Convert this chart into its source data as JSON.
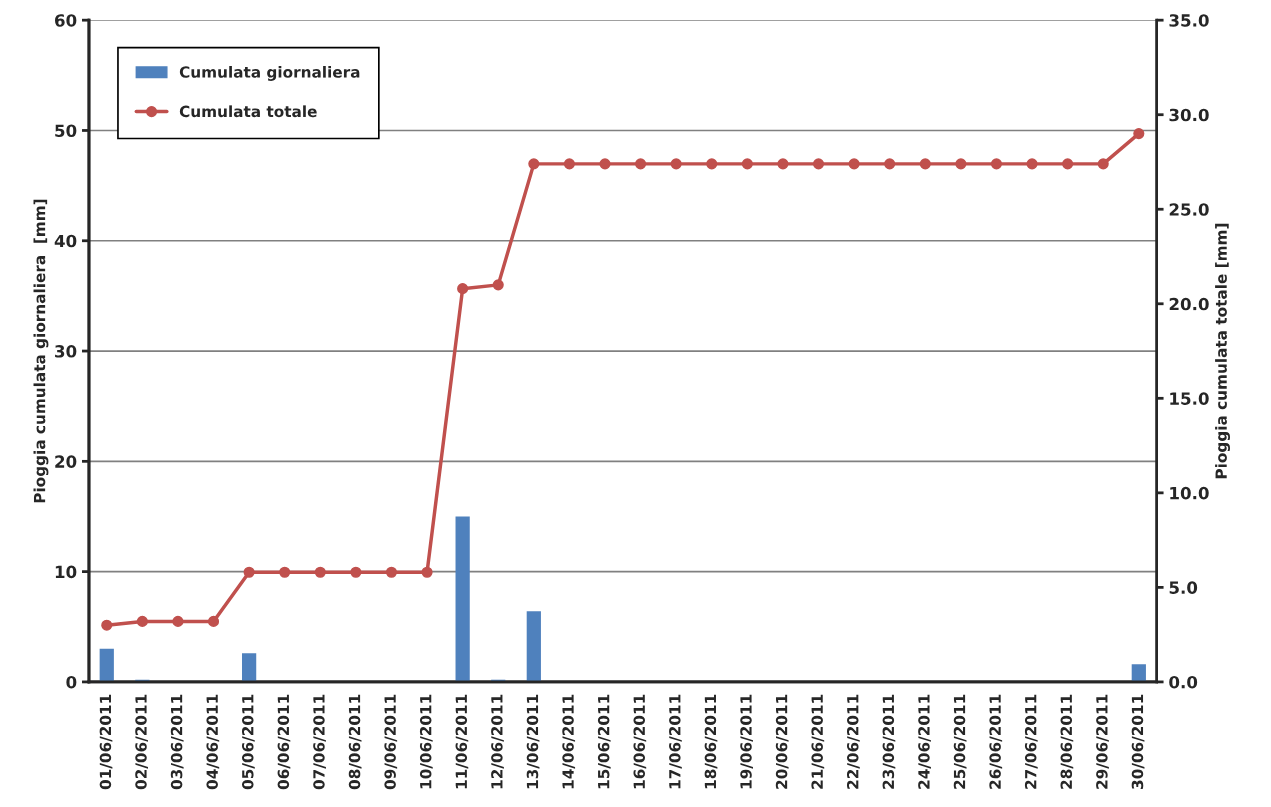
{
  "chart_data": {
    "type": "bar",
    "categories": [
      "01/06/2011",
      "02/06/2011",
      "03/06/2011",
      "04/06/2011",
      "05/06/2011",
      "06/06/2011",
      "07/06/2011",
      "08/06/2011",
      "09/06/2011",
      "10/06/2011",
      "11/06/2011",
      "12/06/2011",
      "13/06/2011",
      "14/06/2011",
      "15/06/2011",
      "16/06/2011",
      "17/06/2011",
      "18/06/2011",
      "19/06/2011",
      "20/06/2011",
      "21/06/2011",
      "22/06/2011",
      "23/06/2011",
      "24/06/2011",
      "25/06/2011",
      "26/06/2011",
      "27/06/2011",
      "28/06/2011",
      "29/06/2011",
      "30/06/2011"
    ],
    "series": [
      {
        "name": "Cumulata giornaliera",
        "color": "#4f81bd",
        "values": [
          3.0,
          0.2,
          0,
          0,
          2.6,
          0,
          0,
          0,
          0,
          0,
          15.0,
          0.2,
          6.4,
          0,
          0,
          0,
          0,
          0,
          0,
          0,
          0,
          0,
          0,
          0,
          0,
          0,
          0,
          0,
          0,
          1.6
        ]
      },
      {
        "name": "Cumulata totale",
        "type": "line",
        "axis": "y2",
        "color": "#c0504d",
        "marker": "circle",
        "line_style": "solid",
        "values": [
          3.0,
          3.2,
          3.2,
          3.2,
          5.8,
          5.8,
          5.8,
          5.8,
          5.8,
          5.8,
          20.8,
          21.0,
          27.4,
          27.4,
          27.4,
          27.4,
          27.4,
          27.4,
          27.4,
          27.4,
          27.4,
          27.4,
          27.4,
          27.4,
          27.4,
          27.4,
          27.4,
          27.4,
          27.4,
          29.0
        ]
      }
    ],
    "ylabel": "Pioggia cumulata giornaliera  [mm]",
    "y2label": "Pioggia cumulata totale [mm]",
    "ylim": [
      0,
      60
    ],
    "yticks": [
      0,
      10,
      20,
      30,
      40,
      50,
      60
    ],
    "y2lim": [
      0,
      35
    ],
    "y2ticks": [
      {
        "value": 0,
        "label": "0.0"
      },
      {
        "value": 5,
        "label": "5.0"
      },
      {
        "value": 10,
        "label": "10.0"
      },
      {
        "value": 15,
        "label": "15.0"
      },
      {
        "value": 20,
        "label": "20.0"
      },
      {
        "value": 25,
        "label": "25.0"
      },
      {
        "value": 30,
        "label": "30.0"
      },
      {
        "value": 35,
        "label": "35.0"
      }
    ],
    "grid": "y",
    "legend": "top left"
  }
}
